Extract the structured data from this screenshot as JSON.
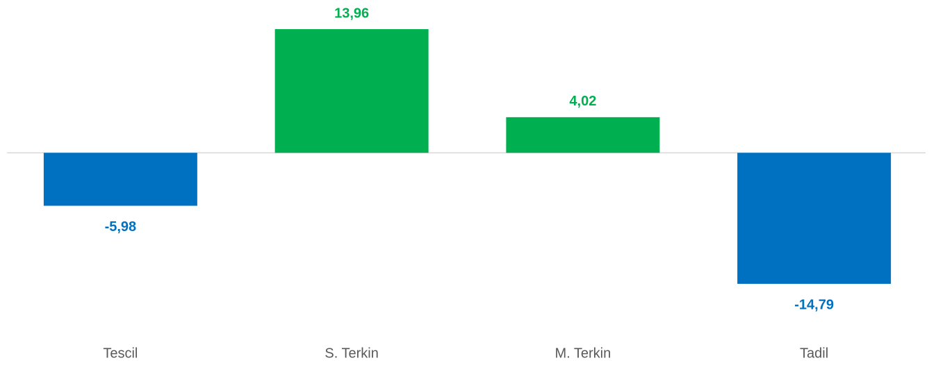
{
  "chart_data": {
    "type": "bar",
    "categories": [
      "Tescil",
      "S. Terkin",
      "M. Terkin",
      "Tadil"
    ],
    "values": [
      -5.98,
      13.96,
      4.02,
      -14.79
    ],
    "value_labels": [
      "-5,98",
      "13,96",
      "4,02",
      "-14,79"
    ],
    "color_positive": "#00b050",
    "color_negative": "#0070c0"
  }
}
